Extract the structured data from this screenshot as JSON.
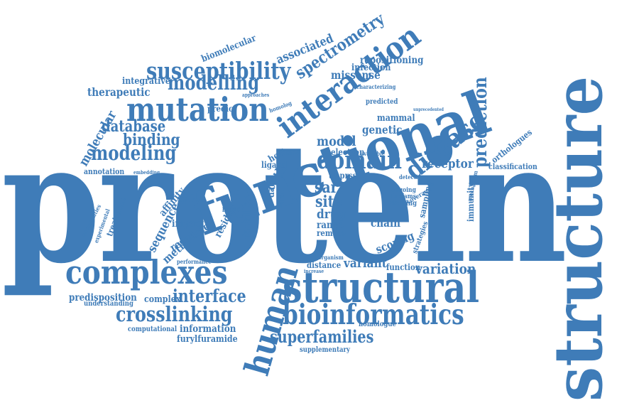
{
  "color": "#3f7cb8",
  "words": {
    "protein": "protein",
    "structure": "structure",
    "functional": "functional",
    "complexes": "complexes",
    "structural": "structural",
    "bioinformatics": "bioinformatics",
    "mutation": "mutation",
    "interaction": "interaction",
    "susceptibility": "susceptibility",
    "domain": "domain",
    "disease": "disease",
    "human": "human",
    "prediction": "prediction",
    "crosslinking": "crosslinking",
    "superfamilies": "superfamilies",
    "modelling": "modelling",
    "modeling": "modeling",
    "database": "database",
    "binding": "binding",
    "spectrometry": "spectrometry",
    "interface": "interface",
    "variation": "variation",
    "therapeutic": "therapeutic",
    "molecular": "molecular",
    "biomolecular": "biomolecular",
    "associated": "associated",
    "integrative": "integrative",
    "repositioning": "repositioning",
    "infection": "infection",
    "missense": "missense",
    "predisposition": "predisposition",
    "complex": "complex",
    "understanding": "understanding",
    "information": "information",
    "computational": "computational",
    "furylfuramide": "furylfuramide",
    "homologue": "homologue",
    "supplementary": "supplementary",
    "receptor": "receptor",
    "classification": "classification",
    "orthologues": "orthologues",
    "genetic": "genetic",
    "mammal": "mammal",
    "model": "model",
    "electron": "electron",
    "cath": "cath",
    "annotation": "annotation",
    "sar": "sar",
    "site": "site",
    "drug": "drug",
    "range": "range",
    "remote": "remote",
    "chain": "chain",
    "scoring": "scoring",
    "variant": "variant",
    "function": "function",
    "distance": "distance",
    "sequence": "sequence",
    "impact": "impact",
    "method": "method",
    "resource": "resource",
    "affinity": "affinity",
    "spike": "spike",
    "residue": "residue",
    "families": "families",
    "treatment": "treatment",
    "tmprss": "tmprss",
    "data": "data",
    "host": "host",
    "ligand": "ligand",
    "animal": "animal",
    "viral": "viral",
    "predict": "predict",
    "broad": "broad",
    "predicted": "predicted",
    "immunity": "immunity",
    "sampling": "sampling",
    "docking": "docking",
    "strategies": "strategies",
    "ongoing": "ongoing",
    "funfams": "funfams",
    "coverage": "coverage",
    "performance": "performance",
    "experimental": "experimental",
    "communities": "communities",
    "mechanism": "mechanism",
    "characterizing": "characterizing",
    "homolog": "homolog",
    "approaches": "approaches",
    "available": "available",
    "detection": "detection",
    "embedding": "embedding",
    "organism": "organism",
    "increase": "increase",
    "unprecedented": "unprecedented"
  }
}
